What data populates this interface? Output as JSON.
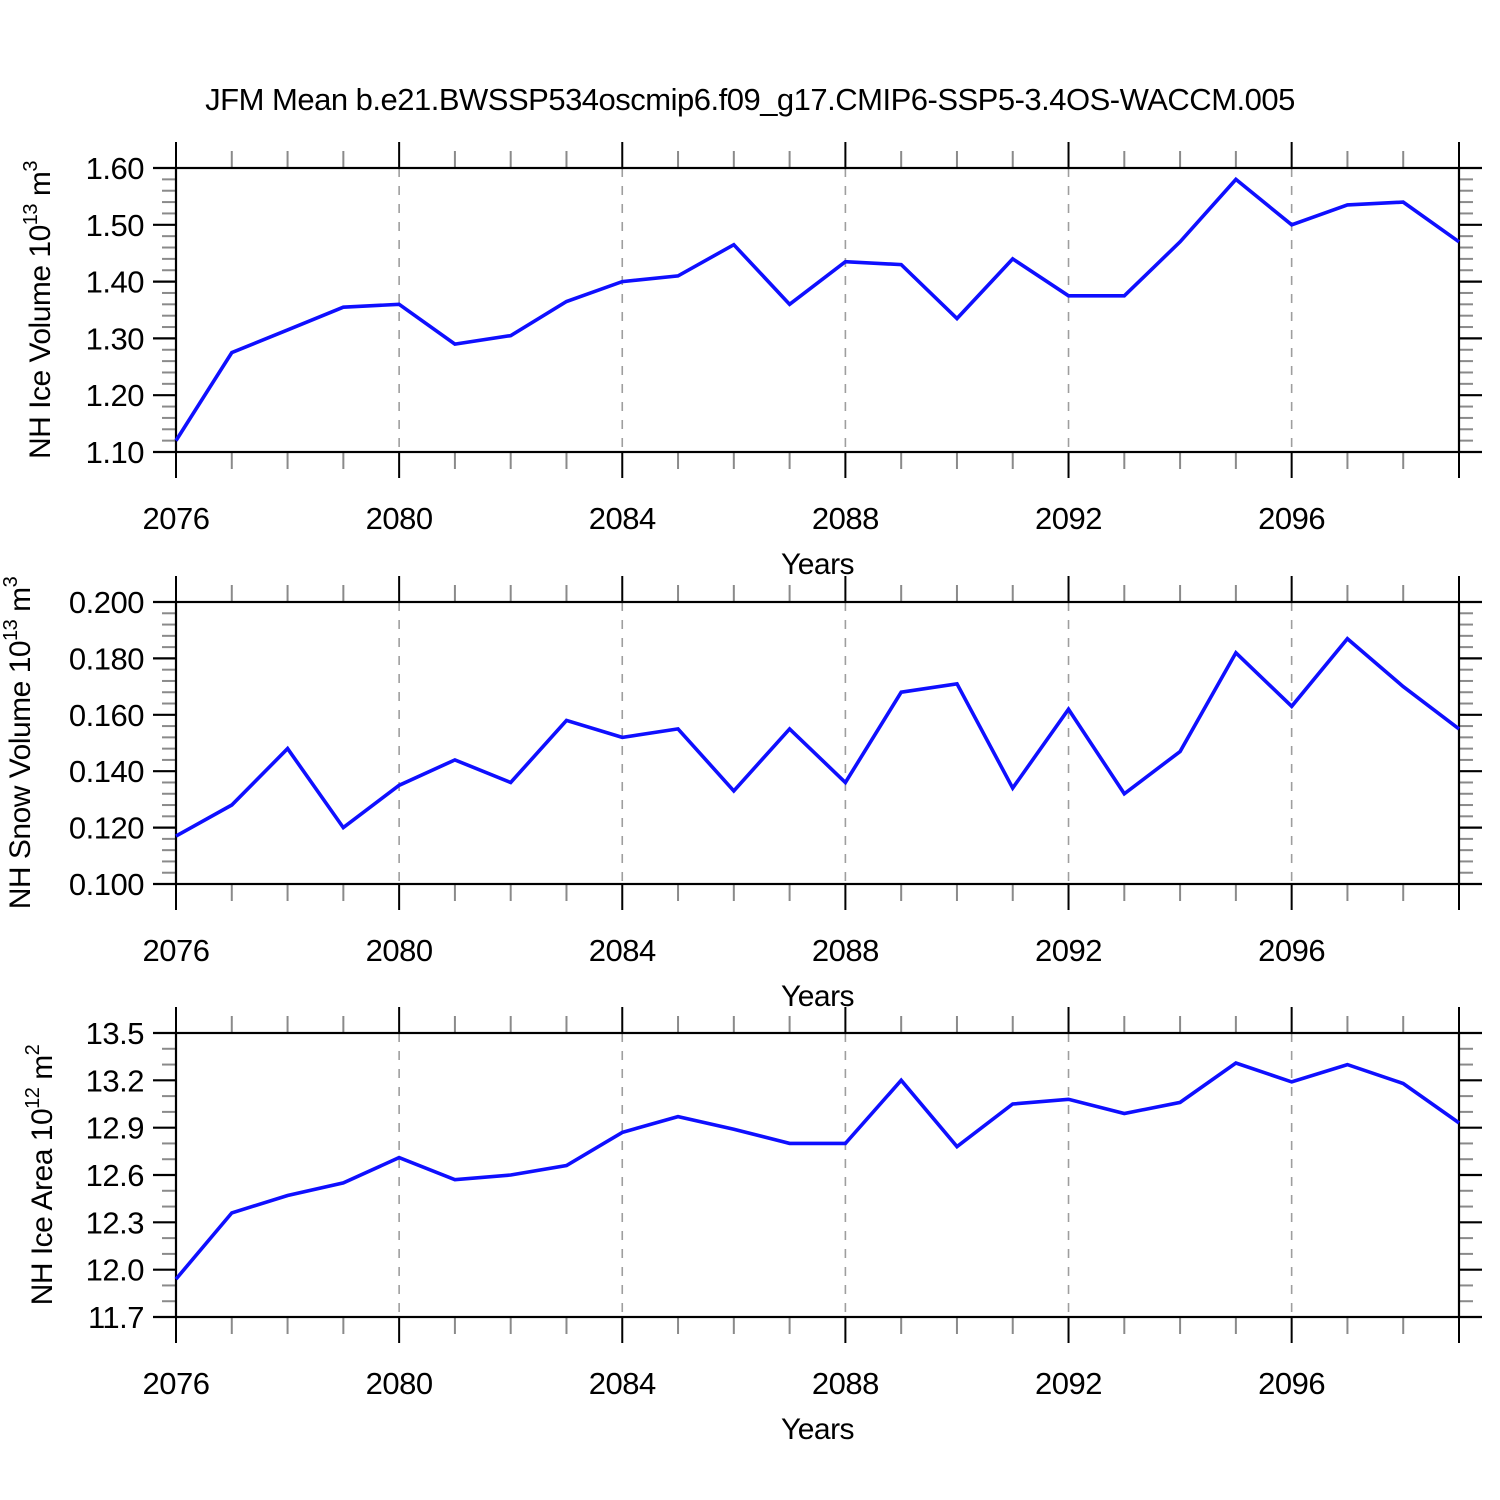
{
  "title": "JFM Mean b.e21.BWSSP534oscmip6.f09_g17.CMIP6-SSP5-3.4OS-WACCM.005",
  "colors": {
    "line": "#0f0fff",
    "axis": "#000000",
    "grid": "#9e9e9e",
    "minor_tick": "#8a8a8a",
    "background": "#ffffff"
  },
  "chart_data": [
    {
      "type": "line",
      "name": "nh-ice-volume",
      "title": "",
      "xlabel": "Years",
      "ylabel_segments": [
        {
          "t": "NH Ice Volume 10"
        },
        {
          "t": "13",
          "sup": true
        },
        {
          "t": " m"
        },
        {
          "t": "3",
          "sup": true
        }
      ],
      "x": [
        2076,
        2077,
        2078,
        2079,
        2080,
        2081,
        2082,
        2083,
        2084,
        2085,
        2086,
        2087,
        2088,
        2089,
        2090,
        2091,
        2092,
        2093,
        2094,
        2095,
        2096,
        2097,
        2098,
        2099
      ],
      "values": [
        1.12,
        1.275,
        1.315,
        1.355,
        1.36,
        1.29,
        1.305,
        1.365,
        1.4,
        1.41,
        1.465,
        1.36,
        1.435,
        1.43,
        1.335,
        1.44,
        1.375,
        1.375,
        1.47,
        1.58,
        1.5,
        1.535,
        1.54,
        1.47
      ],
      "ylim": [
        1.1,
        1.6
      ],
      "yticks": {
        "values": [
          1.1,
          1.2,
          1.3,
          1.4,
          1.5,
          1.6
        ],
        "labels": [
          "1.10",
          "1.20",
          "1.30",
          "1.40",
          "1.50",
          "1.60"
        ]
      },
      "yminor_step": 0.02,
      "xticks": {
        "values": [
          2076,
          2080,
          2084,
          2088,
          2092,
          2096
        ],
        "labels": [
          "2076",
          "2080",
          "2084",
          "2088",
          "2092",
          "2096"
        ]
      },
      "grid": "vertical-dashed",
      "legend": "none"
    },
    {
      "type": "line",
      "name": "nh-snow-volume",
      "title": "",
      "xlabel": "Years",
      "ylabel_segments": [
        {
          "t": "NH Snow Volume 10"
        },
        {
          "t": "13",
          "sup": true
        },
        {
          "t": " m"
        },
        {
          "t": "3",
          "sup": true
        }
      ],
      "x": [
        2076,
        2077,
        2078,
        2079,
        2080,
        2081,
        2082,
        2083,
        2084,
        2085,
        2086,
        2087,
        2088,
        2089,
        2090,
        2091,
        2092,
        2093,
        2094,
        2095,
        2096,
        2097,
        2098,
        2099
      ],
      "values": [
        0.117,
        0.128,
        0.148,
        0.12,
        0.135,
        0.144,
        0.136,
        0.158,
        0.152,
        0.155,
        0.133,
        0.155,
        0.136,
        0.168,
        0.171,
        0.134,
        0.162,
        0.132,
        0.147,
        0.182,
        0.163,
        0.187,
        0.17,
        0.155
      ],
      "ylim": [
        0.1,
        0.2
      ],
      "yticks": {
        "values": [
          0.1,
          0.12,
          0.14,
          0.16,
          0.18,
          0.2
        ],
        "labels": [
          "0.100",
          "0.120",
          "0.140",
          "0.160",
          "0.180",
          "0.200"
        ]
      },
      "yminor_step": 0.004,
      "xticks": {
        "values": [
          2076,
          2080,
          2084,
          2088,
          2092,
          2096
        ],
        "labels": [
          "2076",
          "2080",
          "2084",
          "2088",
          "2092",
          "2096"
        ]
      },
      "grid": "vertical-dashed",
      "legend": "none"
    },
    {
      "type": "line",
      "name": "nh-ice-area",
      "title": "",
      "xlabel": "Years",
      "ylabel_segments": [
        {
          "t": "NH Ice Area 10"
        },
        {
          "t": "12",
          "sup": true
        },
        {
          "t": " m"
        },
        {
          "t": "2",
          "sup": true
        }
      ],
      "x": [
        2076,
        2077,
        2078,
        2079,
        2080,
        2081,
        2082,
        2083,
        2084,
        2085,
        2086,
        2087,
        2088,
        2089,
        2090,
        2091,
        2092,
        2093,
        2094,
        2095,
        2096,
        2097,
        2098,
        2099
      ],
      "values": [
        11.94,
        12.36,
        12.47,
        12.55,
        12.71,
        12.57,
        12.6,
        12.66,
        12.87,
        12.97,
        12.89,
        12.8,
        12.8,
        13.2,
        12.78,
        13.05,
        13.08,
        12.99,
        13.06,
        13.31,
        13.19,
        13.3,
        13.18,
        12.93
      ],
      "ylim": [
        11.7,
        13.5
      ],
      "yticks": {
        "values": [
          11.7,
          12.0,
          12.3,
          12.6,
          12.9,
          13.2,
          13.5
        ],
        "labels": [
          "11.7",
          "12.0",
          "12.3",
          "12.6",
          "12.9",
          "13.2",
          "13.5"
        ]
      },
      "yminor_step": 0.1,
      "xticks": {
        "values": [
          2076,
          2080,
          2084,
          2088,
          2092,
          2096
        ],
        "labels": [
          "2076",
          "2080",
          "2084",
          "2088",
          "2092",
          "2096"
        ]
      },
      "grid": "vertical-dashed",
      "legend": "none"
    }
  ]
}
